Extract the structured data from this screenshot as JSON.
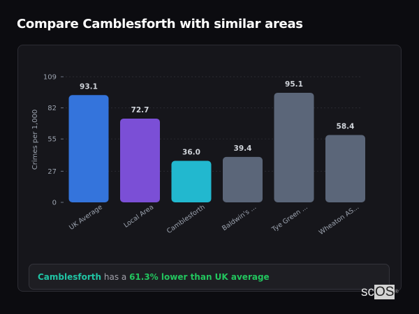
{
  "title": "Compare Camblesforth with similar areas",
  "chart_data": {
    "type": "bar",
    "title": "",
    "xlabel": "",
    "ylabel": "Crimes per 1,000",
    "ylim": [
      0,
      109
    ],
    "yticks": [
      0,
      27,
      55,
      82,
      109
    ],
    "grid": true,
    "categories": [
      "UK Average",
      "Local Area",
      "Camblesforth",
      "Baldwin's ...",
      "Tye Green ...",
      "Wheaton AS..."
    ],
    "values": [
      93.1,
      72.7,
      36.0,
      39.4,
      95.1,
      58.4
    ],
    "data_labels": [
      "93.1",
      "72.7",
      "36.0",
      "39.4",
      "95.1",
      "58.4"
    ],
    "colors": [
      "#3474dc",
      "#7b4fd6",
      "#22b8cf",
      "#5b6679",
      "#5b6679",
      "#5b6679"
    ]
  },
  "insight": {
    "area": "Camblesforth",
    "connector": " has a ",
    "comparison": "61.3% lower than UK average",
    "area_color": "#20c4a4",
    "comparison_color": "#22c55e"
  },
  "logo": {
    "text_a": "sc",
    "text_b": "OS",
    "mark": "®"
  }
}
